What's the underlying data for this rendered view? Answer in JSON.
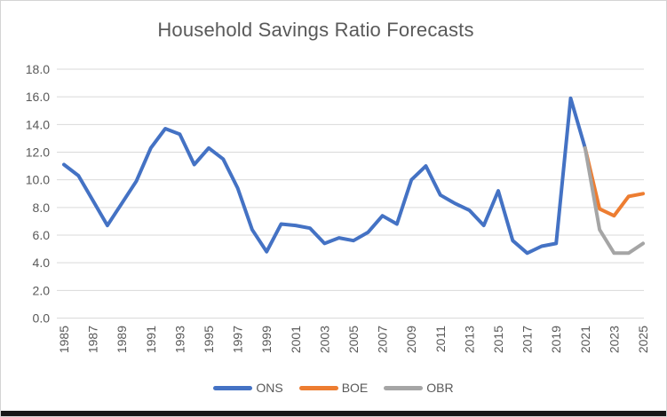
{
  "colors": {
    "ons_blue": "#4472C4",
    "boe_orange": "#ED7D31",
    "obr_gray": "#A5A5A5",
    "text_gray": "#595959",
    "gridline": "#D9D9D9",
    "frame_border": "#D4D4D4",
    "bottom_bar": "#171717"
  },
  "chart_data": {
    "type": "line",
    "title": "Household Savings Ratio Forecasts",
    "xlabel": "",
    "ylabel": "",
    "xlim": [
      1985,
      2025
    ],
    "ylim": [
      0,
      18
    ],
    "grid": "horizontal",
    "legend_position": "bottom",
    "y_ticks": [
      "0.0",
      "2.0",
      "4.0",
      "6.0",
      "8.0",
      "10.0",
      "12.0",
      "14.0",
      "16.0",
      "18.0"
    ],
    "x_ticks": [
      "1985",
      "1987",
      "1989",
      "1991",
      "1993",
      "1995",
      "1997",
      "1999",
      "2001",
      "2003",
      "2005",
      "2007",
      "2009",
      "2011",
      "2013",
      "2015",
      "2017",
      "2019",
      "2021",
      "2023",
      "2025"
    ],
    "series": [
      {
        "name": "ONS",
        "color": "#4472C4",
        "x": [
          1985,
          1986,
          1987,
          1988,
          1989,
          1990,
          1991,
          1992,
          1993,
          1994,
          1995,
          1996,
          1997,
          1998,
          1999,
          2000,
          2001,
          2002,
          2003,
          2004,
          2005,
          2006,
          2007,
          2008,
          2009,
          2010,
          2011,
          2012,
          2013,
          2014,
          2015,
          2016,
          2017,
          2018,
          2019,
          2020,
          2021
        ],
        "values": [
          11.1,
          10.3,
          8.5,
          6.7,
          8.3,
          9.9,
          12.3,
          13.7,
          13.3,
          11.1,
          12.3,
          11.5,
          9.4,
          6.4,
          4.8,
          6.8,
          6.7,
          6.5,
          5.4,
          5.8,
          5.6,
          6.2,
          7.4,
          6.8,
          10.0,
          11.0,
          8.9,
          8.3,
          7.8,
          6.7,
          9.2,
          5.6,
          4.7,
          5.2,
          5.4,
          15.9,
          12.3
        ]
      },
      {
        "name": "BOE",
        "color": "#ED7D31",
        "x": [
          2021,
          2022,
          2023,
          2024,
          2025
        ],
        "values": [
          12.3,
          7.9,
          7.4,
          8.8,
          9.0
        ]
      },
      {
        "name": "OBR",
        "color": "#A5A5A5",
        "x": [
          2021,
          2022,
          2023,
          2024,
          2025
        ],
        "values": [
          12.3,
          6.4,
          4.7,
          4.7,
          5.4
        ]
      }
    ]
  }
}
